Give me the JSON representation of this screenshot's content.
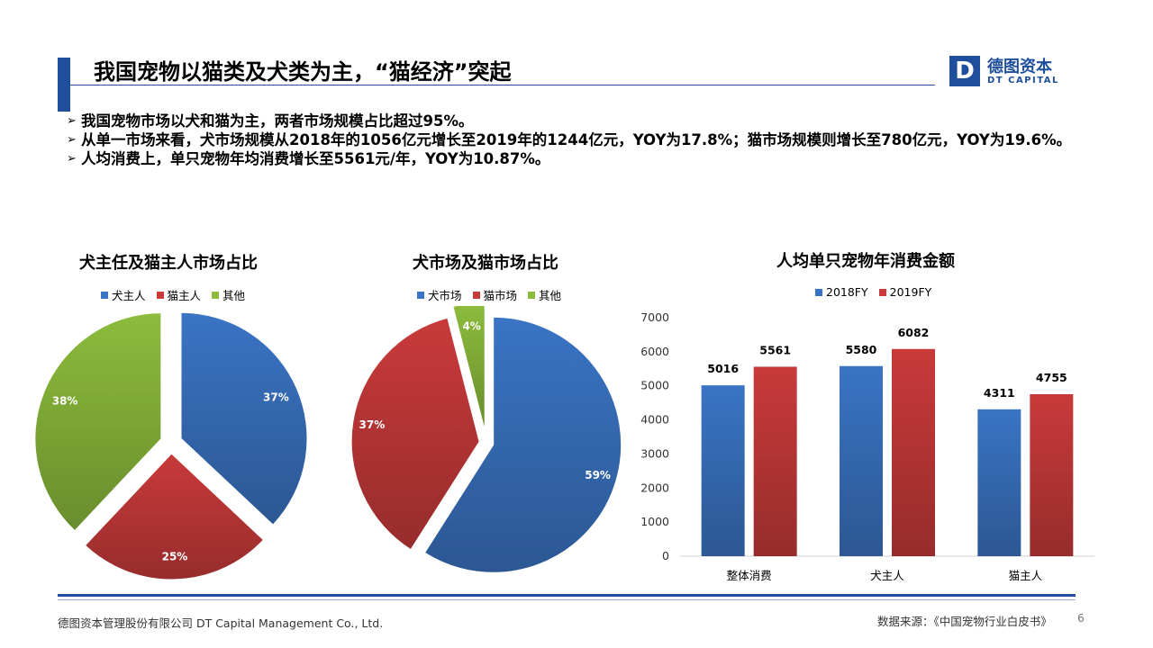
{
  "header": {
    "title": "我国宠物以猫类及犬类为主，“猫经济”突起",
    "logo_mark": "D",
    "logo_cn": "德图资本",
    "logo_en": "DT CAPITAL"
  },
  "bullets": [
    "我国宠物市场以犬和猫为主，两者市场规模占比超过95%。",
    "从单一市场来看，犬市场规模从2018年的1056亿元增长至2019年的1244亿元，YOY为17.8%；猫市场规模则增长至780亿元，YOY为19.6%。",
    "人均消费上，单只宠物年均消费增长至5561元/年，YOY为10.87%。"
  ],
  "colors": {
    "blue": "#3a74c4",
    "red": "#c93a3a",
    "green": "#8cbc3c",
    "brand": "#1f4e9c"
  },
  "chart_data": [
    {
      "type": "pie",
      "title": "犬主任及猫主人市场占比",
      "categories": [
        "犬主人",
        "猫主人",
        "其他"
      ],
      "values": [
        37,
        25,
        38
      ],
      "labels": [
        "37%",
        "25%",
        "38%"
      ],
      "legend": "top"
    },
    {
      "type": "pie",
      "title": "犬市场及猫市场占比",
      "categories": [
        "犬市场",
        "猫市场",
        "其他"
      ],
      "values": [
        59,
        37,
        4
      ],
      "labels": [
        "59%",
        "37%",
        "4%"
      ],
      "legend": "top"
    },
    {
      "type": "bar",
      "title": "人均单只宠物年消费金额",
      "categories": [
        "整体消费",
        "犬主人",
        "猫主人"
      ],
      "series": [
        {
          "name": "2018FY",
          "values": [
            5016,
            5580,
            4311
          ]
        },
        {
          "name": "2019FY",
          "values": [
            5561,
            6082,
            4755
          ]
        }
      ],
      "ylim": [
        0,
        7000
      ],
      "yticks": [
        "0",
        "1000",
        "2000",
        "3000",
        "4000",
        "5000",
        "6000",
        "7000"
      ],
      "legend": "top"
    }
  ],
  "footer": {
    "company": "德图资本管理股份有限公司  DT Capital Management  Co., Ltd.",
    "source": "数据来源：《中国宠物行业白皮书》",
    "page": "6"
  }
}
